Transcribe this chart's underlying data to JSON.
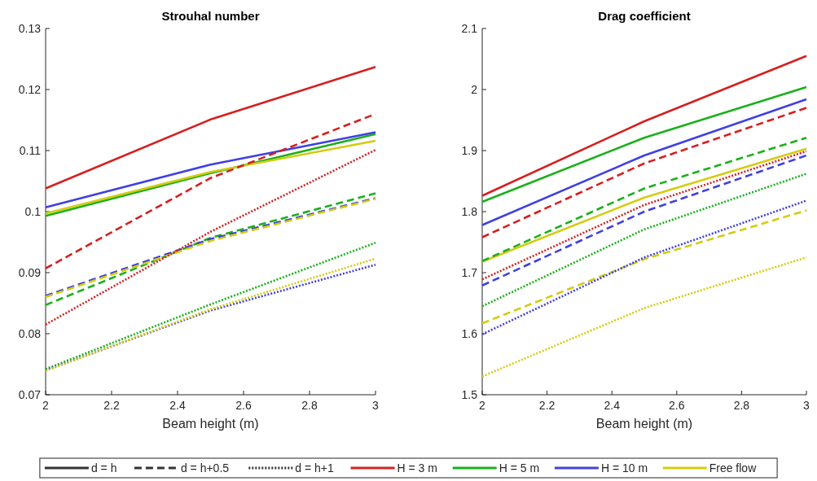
{
  "chart_data": [
    {
      "type": "line",
      "title": "Strouhal number",
      "xlabel": "Beam height (m)",
      "x": [
        2,
        2.5,
        3
      ],
      "xlim": [
        2,
        3
      ],
      "xticks": [
        2,
        2.2,
        2.4,
        2.6,
        2.8,
        3
      ],
      "ylim": [
        0.07,
        0.13
      ],
      "yticks": [
        0.07,
        0.08,
        0.09,
        0.1,
        0.11,
        0.12,
        0.13
      ],
      "grid": false,
      "legend": "bottom",
      "series": [
        {
          "color": "#d42020",
          "line_style": "solid",
          "values": [
            0.1038,
            0.1151,
            0.1237
          ]
        },
        {
          "color": "#1ab01a",
          "line_style": "solid",
          "values": [
            0.0993,
            0.1063,
            0.1127
          ]
        },
        {
          "color": "#4040e0",
          "line_style": "solid",
          "values": [
            0.1007,
            0.1077,
            0.113
          ]
        },
        {
          "color": "#d4cc10",
          "line_style": "solid",
          "values": [
            0.0997,
            0.1065,
            0.1116
          ]
        },
        {
          "color": "#d42020",
          "line_style": "dashed",
          "values": [
            0.0907,
            0.1055,
            0.116
          ]
        },
        {
          "color": "#1ab01a",
          "line_style": "dashed",
          "values": [
            0.0847,
            0.0957,
            0.103
          ]
        },
        {
          "color": "#4040e0",
          "line_style": "dashed",
          "values": [
            0.0862,
            0.0955,
            0.1022
          ]
        },
        {
          "color": "#d4cc10",
          "line_style": "dashed",
          "values": [
            0.086,
            0.0952,
            0.1021
          ]
        },
        {
          "color": "#d42020",
          "line_style": "dotted",
          "values": [
            0.0815,
            0.0967,
            0.1101
          ]
        },
        {
          "color": "#1ab01a",
          "line_style": "dotted",
          "values": [
            0.0742,
            0.0848,
            0.0949
          ]
        },
        {
          "color": "#4040e0",
          "line_style": "dotted",
          "values": [
            0.074,
            0.0838,
            0.0913
          ]
        },
        {
          "color": "#d4cc10",
          "line_style": "dotted",
          "values": [
            0.0739,
            0.084,
            0.0923
          ]
        },
        {
          "name": "d = h",
          "color": "#333333",
          "line_style": "solid",
          "values": [
            null,
            null,
            null
          ]
        },
        {
          "name": "d = h+0.5",
          "color": "#333333",
          "line_style": "dashed",
          "values": [
            null,
            null,
            null
          ]
        },
        {
          "name": "d = h+1",
          "color": "#333333",
          "line_style": "dotted",
          "values": [
            null,
            null,
            null
          ]
        },
        {
          "name": "H = 3 m",
          "color": "#d42020",
          "line_style": "solid",
          "values": [
            null,
            null,
            null
          ]
        },
        {
          "name": "H = 5 m",
          "color": "#1ab01a",
          "line_style": "solid",
          "values": [
            null,
            null,
            null
          ]
        },
        {
          "name": "H = 10 m",
          "color": "#4040e0",
          "line_style": "solid",
          "values": [
            null,
            null,
            null
          ]
        },
        {
          "name": "Free flow",
          "color": "#d4cc10",
          "line_style": "solid",
          "values": [
            null,
            null,
            null
          ]
        }
      ]
    },
    {
      "type": "line",
      "title": "Drag coefficient",
      "xlabel": "Beam height (m)",
      "x": [
        2,
        2.5,
        3
      ],
      "xlim": [
        2,
        3
      ],
      "xticks": [
        2,
        2.2,
        2.4,
        2.6,
        2.8,
        3
      ],
      "ylim": [
        1.5,
        2.1
      ],
      "yticks": [
        1.5,
        1.6,
        1.7,
        1.8,
        1.9,
        2,
        2.1
      ],
      "grid": false,
      "series": [
        {
          "color": "#d42020",
          "line_style": "solid",
          "values": [
            1.826,
            1.948,
            2.055
          ]
        },
        {
          "color": "#1ab01a",
          "line_style": "solid",
          "values": [
            1.816,
            1.921,
            2.004
          ]
        },
        {
          "color": "#4040e0",
          "line_style": "solid",
          "values": [
            1.778,
            1.892,
            1.984
          ]
        },
        {
          "color": "#d4cc10",
          "line_style": "solid",
          "values": [
            1.718,
            1.823,
            1.903
          ]
        },
        {
          "color": "#d42020",
          "line_style": "dashed",
          "values": [
            1.758,
            1.879,
            1.97
          ]
        },
        {
          "color": "#1ab01a",
          "line_style": "dashed",
          "values": [
            1.719,
            1.838,
            1.921
          ]
        },
        {
          "color": "#4040e0",
          "line_style": "dashed",
          "values": [
            1.679,
            1.8,
            1.892
          ]
        },
        {
          "color": "#d4cc10",
          "line_style": "dashed",
          "values": [
            1.617,
            1.722,
            1.802
          ]
        },
        {
          "color": "#d42020",
          "line_style": "dotted",
          "values": [
            1.689,
            1.811,
            1.899
          ]
        },
        {
          "color": "#1ab01a",
          "line_style": "dotted",
          "values": [
            1.645,
            1.771,
            1.862
          ]
        },
        {
          "color": "#4040e0",
          "line_style": "dotted",
          "values": [
            1.599,
            1.725,
            1.818
          ]
        },
        {
          "color": "#d4cc10",
          "line_style": "dotted",
          "values": [
            1.53,
            1.642,
            1.725
          ]
        }
      ]
    }
  ]
}
